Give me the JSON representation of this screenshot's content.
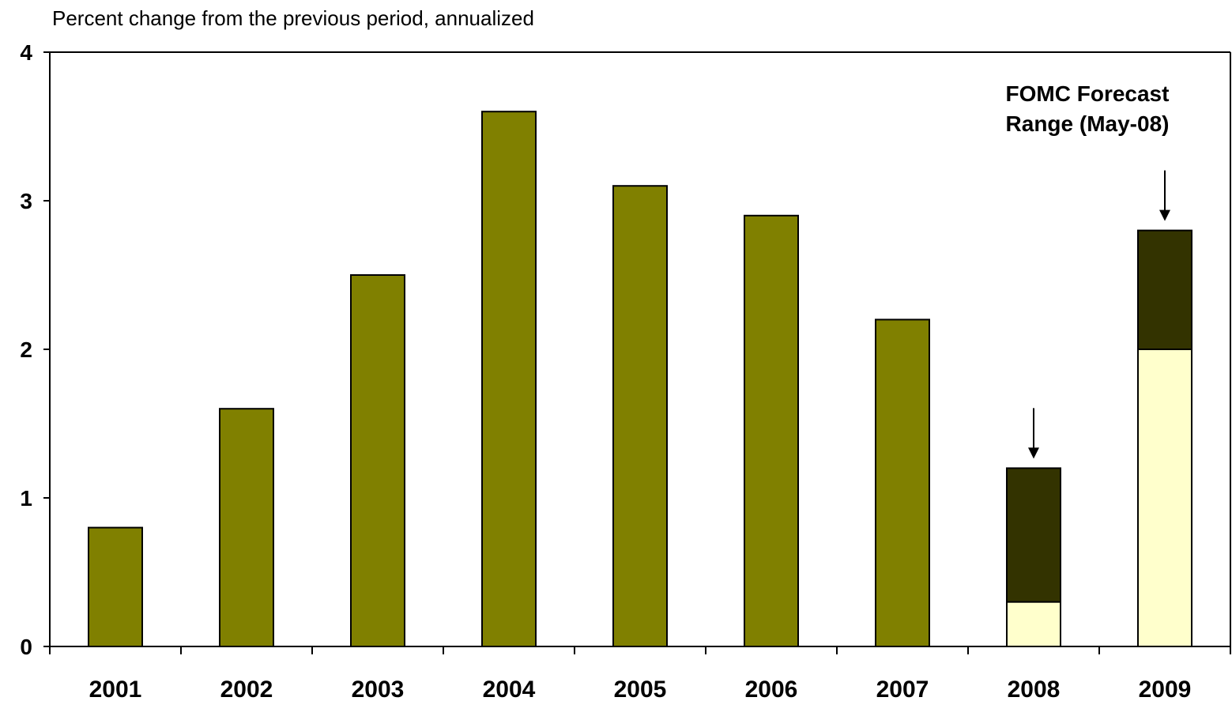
{
  "chart_data": {
    "type": "bar",
    "title": "",
    "subtitle": "Percent change from the previous period, annualized",
    "xlabel": "",
    "ylabel": "",
    "ylim": [
      0,
      4
    ],
    "yticks": [
      "0",
      "1",
      "2",
      "3",
      "4"
    ],
    "categories": [
      "2001",
      "2002",
      "2003",
      "2004",
      "2005",
      "2006",
      "2007",
      "2008",
      "2009"
    ],
    "values": [
      0.8,
      1.6,
      2.5,
      3.6,
      3.1,
      2.9,
      2.2,
      null,
      null
    ],
    "forecast_range": {
      "categories": [
        "2008",
        "2009"
      ],
      "low": [
        0.3,
        2.0
      ],
      "high": [
        1.2,
        2.8
      ]
    },
    "annotation": {
      "line1": "FOMC Forecast",
      "line2": "Range (May-08)"
    },
    "grid": false,
    "legend": "none",
    "colors": {
      "history_bar": "#808000",
      "range_upper": "#333300",
      "range_lower": "#FFFFCC",
      "outline": "#000000"
    }
  }
}
